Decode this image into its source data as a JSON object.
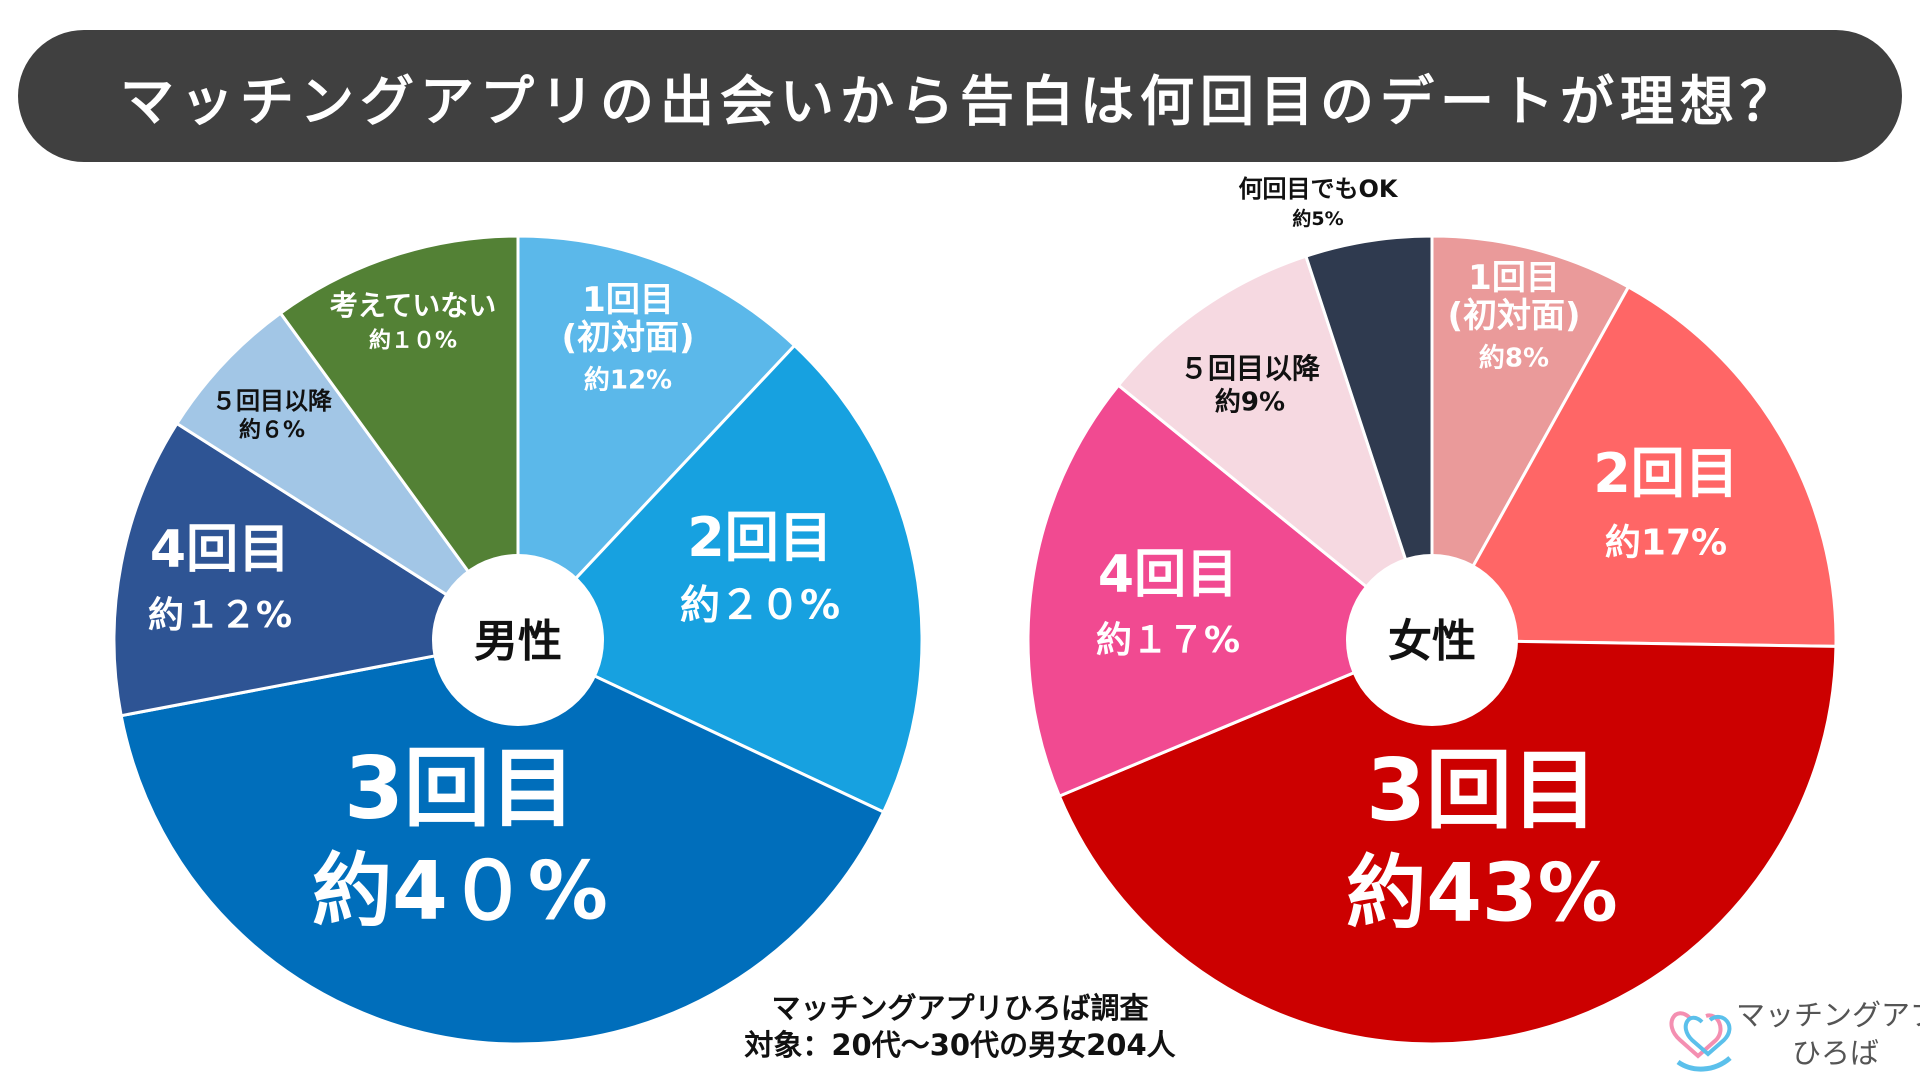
{
  "title": "マッチングアプリの出会いから告白は何回目のデートが理想？",
  "colors": {
    "title_bg": "#404040",
    "male": [
      "#5BB8EA",
      "#17A1E0",
      "#006EBB",
      "#2E5494",
      "#A2C6E6",
      "#538135"
    ],
    "female": [
      "#EA9A9A",
      "#FF6666",
      "#CC0000",
      "#F14A91",
      "#F6D9E1",
      "#2F3A4F"
    ]
  },
  "chart_data": [
    {
      "type": "pie",
      "name": "男性",
      "center_label": "男性",
      "slices": [
        {
          "label": "1回目\n(初対面)",
          "value_label": "約12%",
          "value": 12
        },
        {
          "label": "2回目",
          "value_label": "約２０%",
          "value": 20
        },
        {
          "label": "3回目",
          "value_label": "約4０%",
          "value": 40
        },
        {
          "label": "4回目",
          "value_label": "約１２%",
          "value": 12
        },
        {
          "label": "５回目以降",
          "value_label": "約６%",
          "value": 6
        },
        {
          "label": "考えていない",
          "value_label": "約１０%",
          "value": 10
        }
      ]
    },
    {
      "type": "pie",
      "name": "女性",
      "center_label": "女性",
      "slices": [
        {
          "label": "1回目\n(初対面)",
          "value_label": "約8%",
          "value": 8
        },
        {
          "label": "2回目",
          "value_label": "約17%",
          "value": 17
        },
        {
          "label": "3回目",
          "value_label": "約43%",
          "value": 43
        },
        {
          "label": "4回目",
          "value_label": "約１７%",
          "value": 17
        },
        {
          "label": "５回目以降",
          "value_label": "約9%",
          "value": 9
        },
        {
          "label": "何回目でもOK",
          "value_label": "約5%",
          "value": 5
        }
      ]
    }
  ],
  "source": {
    "line1": "マッチングアプリひろば調査",
    "line2": "対象：20代～30代の男女204人"
  },
  "logo": {
    "line1": "マッチングアプリ",
    "line2": "ひろば",
    "icon": "heart-logo-icon"
  }
}
